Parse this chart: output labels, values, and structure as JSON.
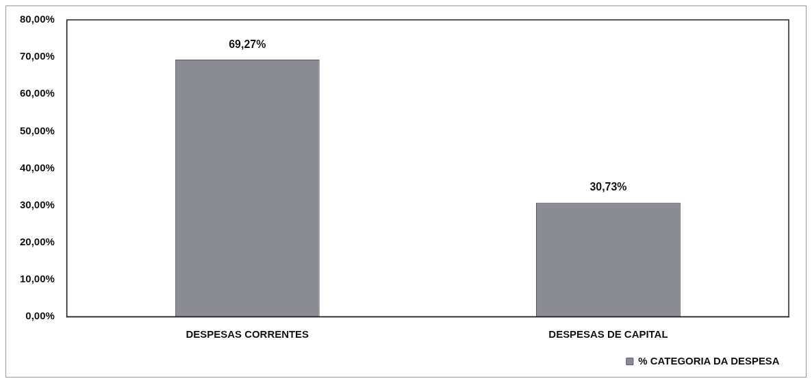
{
  "chart_data": {
    "type": "bar",
    "categories": [
      "DESPESAS CORRENTES",
      "DESPESAS DE CAPITAL"
    ],
    "series": [
      {
        "name": "% CATEGORIA DA DESPESA",
        "color": "#8c8c95",
        "values": [
          69.27,
          30.73
        ],
        "value_labels": [
          "69,27%",
          "30,73%"
        ]
      }
    ],
    "ylim": [
      0,
      80
    ],
    "yticks": [
      {
        "value": 0,
        "label": "0,00%"
      },
      {
        "value": 10,
        "label": "10,00%"
      },
      {
        "value": 20,
        "label": "20,00%"
      },
      {
        "value": 30,
        "label": "30,00%"
      },
      {
        "value": 40,
        "label": "40,00%"
      },
      {
        "value": 50,
        "label": "50,00%"
      },
      {
        "value": 60,
        "label": "60,00%"
      },
      {
        "value": 70,
        "label": "70,00%"
      },
      {
        "value": 80,
        "label": "80,00%"
      }
    ],
    "legend": "bottom right"
  }
}
